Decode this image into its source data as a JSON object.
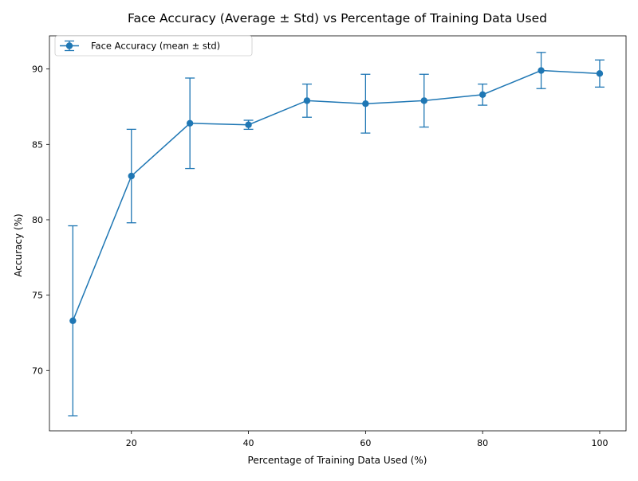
{
  "chart_data": {
    "type": "line",
    "title": "Face Accuracy (Average ± Std) vs Percentage of Training Data Used",
    "xlabel": "Percentage of Training Data Used (%)",
    "ylabel": "Accuracy (%)",
    "xlim": [
      6,
      104.5
    ],
    "ylim": [
      66.0,
      92.2
    ],
    "xticks": [
      20,
      40,
      60,
      80,
      100
    ],
    "yticks": [
      70,
      75,
      80,
      85,
      90
    ],
    "grid": false,
    "legend_position": "top-left",
    "series": [
      {
        "name": "Face Accuracy (mean ± std)",
        "color": "#1f77b4",
        "marker": "circle",
        "x": [
          10,
          20,
          30,
          40,
          50,
          60,
          70,
          80,
          90,
          100
        ],
        "y": [
          73.3,
          82.9,
          86.4,
          86.3,
          87.9,
          87.7,
          87.9,
          88.3,
          89.9,
          89.7
        ],
        "error": [
          6.3,
          3.1,
          3.0,
          0.3,
          1.1,
          1.95,
          1.75,
          0.7,
          1.2,
          0.9
        ]
      }
    ]
  }
}
